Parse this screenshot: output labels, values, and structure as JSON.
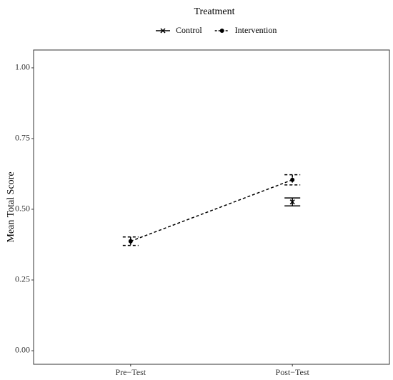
{
  "chart_data": {
    "type": "line",
    "legend_title": "Treatment",
    "y_label": "Mean Total Score",
    "categories": [
      "Pre−Test",
      "Post−Test"
    ],
    "series": [
      {
        "name": "Control",
        "color": "#000000",
        "linestyle": "solid",
        "marker": "x",
        "values": [
          null,
          0.526
        ],
        "errors": [
          null,
          0.014
        ]
      },
      {
        "name": "Intervention",
        "color": "#000000",
        "linestyle": "dashed",
        "marker": "circle",
        "values": [
          0.387,
          0.604
        ],
        "errors": [
          0.015,
          0.018
        ]
      }
    ],
    "ylim": [
      -0.048,
      1.063
    ],
    "yticks": [
      {
        "value": 0,
        "label": "0.00"
      },
      {
        "value": 0.25,
        "label": "0.25"
      },
      {
        "value": 0.5,
        "label": "0.50"
      },
      {
        "value": 0.75,
        "label": "0.75"
      },
      {
        "value": 1,
        "label": "1.00"
      }
    ],
    "grid": false,
    "legend_position": "top"
  }
}
